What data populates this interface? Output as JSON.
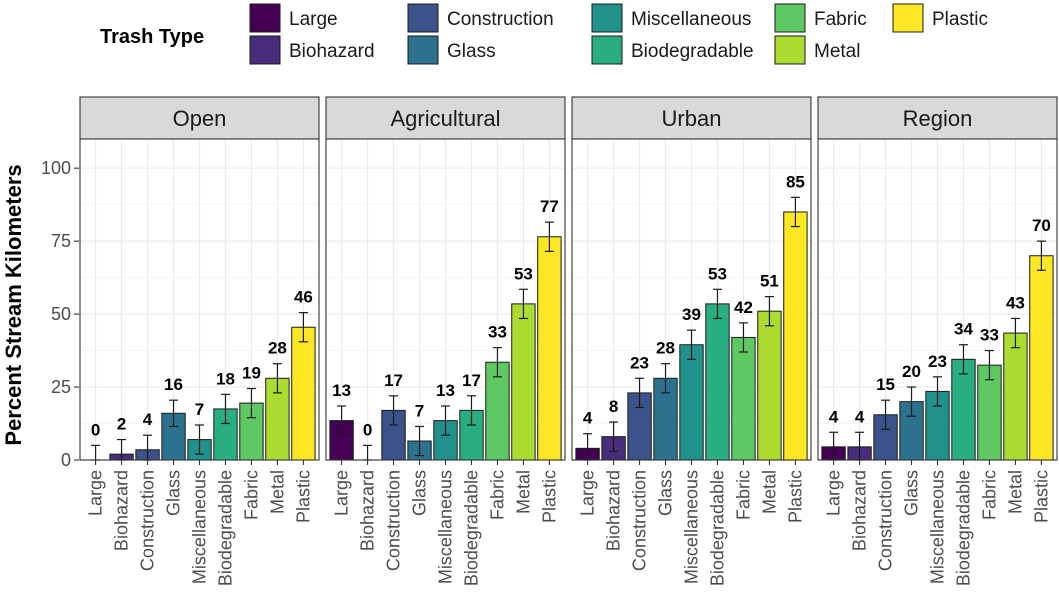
{
  "chart_data": {
    "type": "bar",
    "ylabel": "Percent Stream Kilometers",
    "xlabel": "",
    "ylim": [
      0,
      110
    ],
    "yticks": [
      0,
      25,
      50,
      75,
      100
    ],
    "legend": {
      "title": "Trash Type",
      "position": "top",
      "items": [
        {
          "label": "Large",
          "color": "#440154"
        },
        {
          "label": "Biohazard",
          "color": "#472d7b"
        },
        {
          "label": "Construction",
          "color": "#3b528b"
        },
        {
          "label": "Glass",
          "color": "#2c728e"
        },
        {
          "label": "Miscellaneous",
          "color": "#21918c"
        },
        {
          "label": "Biodegradable",
          "color": "#28ae80"
        },
        {
          "label": "Fabric",
          "color": "#5ec962"
        },
        {
          "label": "Metal",
          "color": "#addc30"
        },
        {
          "label": "Plastic",
          "color": "#fde725"
        }
      ]
    },
    "categories": [
      "Large",
      "Biohazard",
      "Construction",
      "Glass",
      "Miscellaneous",
      "Biodegradable",
      "Fabric",
      "Metal",
      "Plastic"
    ],
    "colors": [
      "#440154",
      "#472d7b",
      "#3b528b",
      "#2c728e",
      "#21918c",
      "#28ae80",
      "#5ec962",
      "#addc30",
      "#fde725"
    ],
    "panels": [
      {
        "title": "Open",
        "values": [
          0,
          2,
          3.5,
          16,
          7,
          17.5,
          19.5,
          28,
          45.5
        ],
        "labels": [
          "0",
          "2",
          "4",
          "16",
          "7",
          "18",
          "19",
          "28",
          "46"
        ],
        "errors": [
          5,
          5,
          5,
          4.5,
          5,
          5,
          5,
          5,
          5
        ]
      },
      {
        "title": "Agricultural",
        "values": [
          13.5,
          0,
          17,
          6.5,
          13.5,
          17,
          33.5,
          53.5,
          76.5
        ],
        "labels": [
          "13",
          "0",
          "17",
          "7",
          "13",
          "17",
          "33",
          "53",
          "77"
        ],
        "errors": [
          5,
          5,
          5,
          5,
          5,
          5,
          5,
          5,
          5
        ]
      },
      {
        "title": "Urban",
        "values": [
          4,
          8,
          23,
          28,
          39.5,
          53.5,
          42,
          51,
          85
        ],
        "labels": [
          "4",
          "8",
          "23",
          "28",
          "39",
          "53",
          "42",
          "51",
          "85"
        ],
        "errors": [
          5,
          5,
          5,
          5,
          5,
          5,
          5,
          5,
          5
        ]
      },
      {
        "title": "Region",
        "values": [
          4.5,
          4.5,
          15.5,
          20,
          23.5,
          34.5,
          32.5,
          43.5,
          70
        ],
        "labels": [
          "4",
          "4",
          "15",
          "20",
          "23",
          "34",
          "33",
          "43",
          "70"
        ],
        "errors": [
          5,
          5,
          5,
          5,
          5,
          5,
          5,
          5,
          5
        ]
      }
    ]
  }
}
